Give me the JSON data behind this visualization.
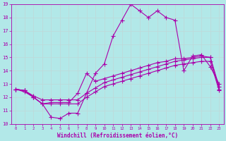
{
  "background_color": "#b2e8e8",
  "grid_color": "#c0d8d8",
  "line_color": "#aa00aa",
  "xlabel": "Windchill (Refroidissement éolien,°C)",
  "xlim": [
    -0.5,
    23.5
  ],
  "ylim": [
    10,
    19
  ],
  "yticks": [
    10,
    11,
    12,
    13,
    14,
    15,
    16,
    17,
    18,
    19
  ],
  "xticks": [
    0,
    1,
    2,
    3,
    4,
    5,
    6,
    7,
    8,
    9,
    10,
    11,
    12,
    13,
    14,
    15,
    16,
    17,
    18,
    19,
    20,
    21,
    22,
    23
  ],
  "line1_y": [
    12.6,
    12.5,
    12.0,
    11.5,
    10.5,
    10.4,
    10.8,
    10.8,
    12.3,
    13.8,
    14.5,
    16.6,
    17.8,
    19.0,
    18.5,
    18.0,
    18.5,
    18.0,
    17.8,
    14.0,
    15.1,
    15.2,
    14.3,
    13.0
  ],
  "line2_y": [
    12.6,
    12.5,
    12.0,
    11.5,
    11.6,
    11.6,
    11.6,
    12.3,
    13.8,
    13.2,
    13.4,
    13.6,
    13.8,
    14.0,
    14.2,
    14.4,
    14.6,
    14.7,
    14.9,
    14.9,
    15.0,
    15.1,
    15.0,
    12.8
  ],
  "line3_y": [
    12.6,
    12.5,
    12.1,
    11.8,
    11.8,
    11.8,
    11.8,
    11.8,
    12.3,
    12.7,
    13.1,
    13.3,
    13.5,
    13.7,
    13.9,
    14.1,
    14.3,
    14.5,
    14.7,
    14.8,
    14.9,
    15.0,
    15.0,
    12.6
  ],
  "line4_y": [
    12.6,
    12.4,
    12.0,
    11.5,
    11.5,
    11.5,
    11.5,
    11.5,
    12.0,
    12.4,
    12.8,
    13.0,
    13.2,
    13.4,
    13.6,
    13.8,
    14.0,
    14.2,
    14.4,
    14.5,
    14.6,
    14.7,
    14.7,
    12.5
  ]
}
